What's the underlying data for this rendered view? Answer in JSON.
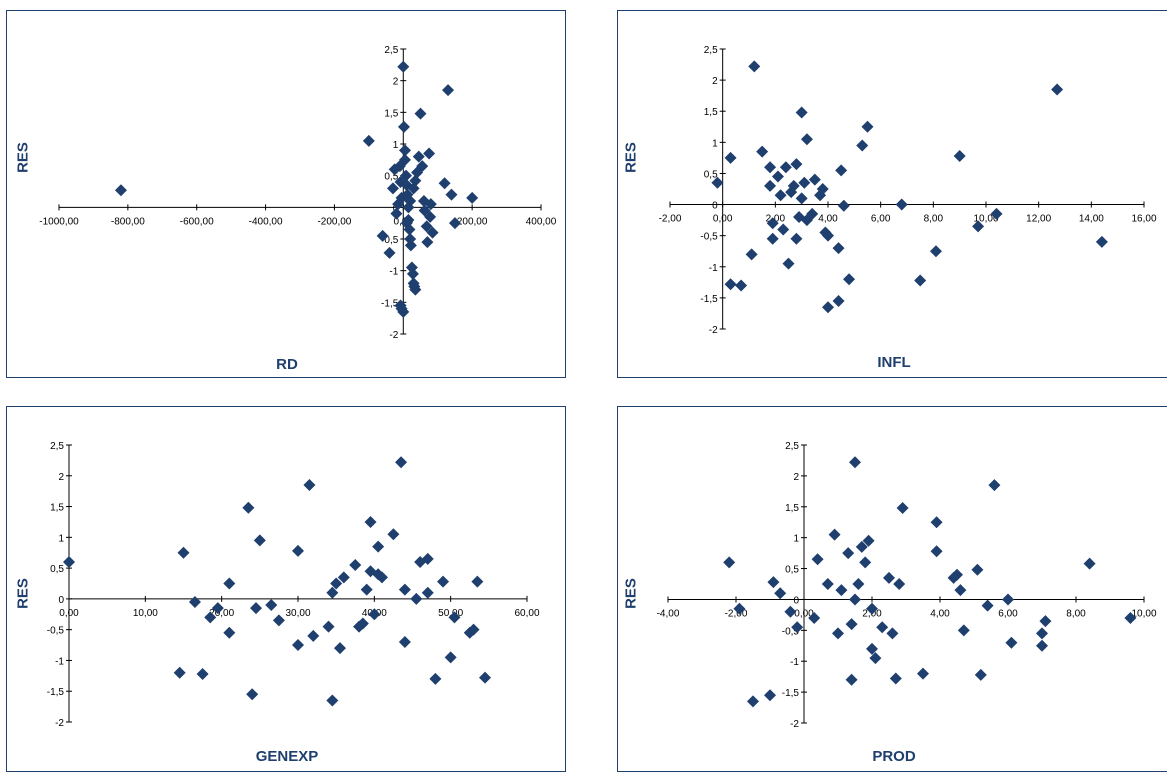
{
  "chart_data": [
    {
      "type": "scatter",
      "xlabel": "RD",
      "ylabel": "RES",
      "xlim": [
        -1000,
        400
      ],
      "ylim": [
        -2,
        2.5
      ],
      "xticks": [
        "-1000,00",
        "-800,00",
        "-600,00",
        "-400,00",
        "-200,00",
        "0,00",
        "200,00",
        "400,00"
      ],
      "yticks": [
        "-2",
        "-1,5",
        "-1",
        "-0,5",
        "0",
        "0,5",
        "1",
        "1,5",
        "2",
        "2,5"
      ],
      "marker_color": "#1f3f6e",
      "points": [
        [
          -820,
          0.27
        ],
        [
          -100,
          1.05
        ],
        [
          -60,
          -0.45
        ],
        [
          -40,
          -0.72
        ],
        [
          -30,
          0.3
        ],
        [
          -25,
          0.6
        ],
        [
          -20,
          -0.1
        ],
        [
          -15,
          0.05
        ],
        [
          -10,
          0.65
        ],
        [
          -8,
          0.4
        ],
        [
          -5,
          0.15
        ],
        [
          0,
          2.22
        ],
        [
          2,
          1.27
        ],
        [
          5,
          0.75
        ],
        [
          5,
          0.9
        ],
        [
          8,
          0.5
        ],
        [
          10,
          0.35
        ],
        [
          12,
          0.2
        ],
        [
          15,
          0.0
        ],
        [
          15,
          -0.2
        ],
        [
          18,
          -0.35
        ],
        [
          20,
          -0.5
        ],
        [
          22,
          -0.6
        ],
        [
          25,
          -0.95
        ],
        [
          28,
          -1.05
        ],
        [
          30,
          -1.2
        ],
        [
          32,
          -1.25
        ],
        [
          35,
          -1.3
        ],
        [
          -8,
          -1.55
        ],
        [
          -5,
          -1.6
        ],
        [
          0,
          -1.65
        ],
        [
          10,
          -0.25
        ],
        [
          20,
          0.1
        ],
        [
          30,
          0.3
        ],
        [
          35,
          0.42
        ],
        [
          40,
          0.55
        ],
        [
          45,
          0.8
        ],
        [
          50,
          1.48
        ],
        [
          55,
          0.65
        ],
        [
          60,
          0.1
        ],
        [
          62,
          -0.05
        ],
        [
          68,
          -0.3
        ],
        [
          70,
          -0.55
        ],
        [
          75,
          0.85
        ],
        [
          78,
          -0.15
        ],
        [
          80,
          0.05
        ],
        [
          120,
          0.38
        ],
        [
          130,
          1.85
        ],
        [
          140,
          0.2
        ],
        [
          150,
          -0.25
        ],
        [
          85,
          -0.4
        ],
        [
          200,
          0.15
        ]
      ]
    },
    {
      "type": "scatter",
      "xlabel": "INFL",
      "ylabel": "RES",
      "xlim": [
        -2,
        16
      ],
      "ylim": [
        -2,
        2.5
      ],
      "xticks": [
        "-2,00",
        "0,00",
        "2,00",
        "4,00",
        "6,00",
        "8,00",
        "10,00",
        "12,00",
        "14,00",
        "16,00"
      ],
      "yticks": [
        "-2",
        "-1,5",
        "-1",
        "-0,5",
        "0",
        "0,5",
        "1",
        "1,5",
        "2",
        "2,5"
      ],
      "marker_color": "#1f3f6e",
      "points": [
        [
          -0.2,
          0.35
        ],
        [
          0.3,
          0.75
        ],
        [
          0.3,
          -1.28
        ],
        [
          0.7,
          -1.3
        ],
        [
          1.1,
          -0.8
        ],
        [
          1.2,
          2.22
        ],
        [
          1.5,
          0.85
        ],
        [
          1.8,
          0.6
        ],
        [
          1.8,
          0.3
        ],
        [
          1.9,
          -0.3
        ],
        [
          1.9,
          -0.55
        ],
        [
          2.1,
          0.45
        ],
        [
          2.2,
          0.15
        ],
        [
          2.3,
          -0.4
        ],
        [
          2.4,
          0.6
        ],
        [
          2.5,
          -0.95
        ],
        [
          2.6,
          0.2
        ],
        [
          2.7,
          0.3
        ],
        [
          2.8,
          0.65
        ],
        [
          2.8,
          -0.55
        ],
        [
          2.9,
          -0.2
        ],
        [
          3.0,
          0.1
        ],
        [
          3.0,
          1.48
        ],
        [
          3.1,
          0.35
        ],
        [
          3.2,
          1.05
        ],
        [
          3.2,
          -0.25
        ],
        [
          3.4,
          -0.15
        ],
        [
          3.5,
          0.4
        ],
        [
          3.7,
          0.15
        ],
        [
          3.8,
          0.25
        ],
        [
          3.9,
          -0.45
        ],
        [
          4.0,
          -0.5
        ],
        [
          4.0,
          -1.65
        ],
        [
          4.4,
          -1.55
        ],
        [
          4.4,
          -0.7
        ],
        [
          4.5,
          0.55
        ],
        [
          4.6,
          -0.02
        ],
        [
          4.8,
          -1.2
        ],
        [
          5.3,
          0.95
        ],
        [
          5.5,
          1.25
        ],
        [
          6.8,
          0.0
        ],
        [
          7.5,
          -1.22
        ],
        [
          8.1,
          -0.75
        ],
        [
          9.0,
          0.78
        ],
        [
          9.7,
          -0.35
        ],
        [
          10.4,
          -0.15
        ],
        [
          12.7,
          1.85
        ],
        [
          14.4,
          -0.6
        ]
      ]
    },
    {
      "type": "scatter",
      "xlabel": "GENEXP",
      "ylabel": "RES",
      "xlim": [
        0,
        60
      ],
      "ylim": [
        -2,
        2.5
      ],
      "xticks": [
        "0,00",
        "10,00",
        "20,00",
        "30,00",
        "40,00",
        "50,00",
        "60,00"
      ],
      "yticks": [
        "-2",
        "-1,5",
        "-1",
        "-0,5",
        "0",
        "0,5",
        "1",
        "1,5",
        "2",
        "2,5"
      ],
      "marker_color": "#1f3f6e",
      "points": [
        [
          0,
          0.6
        ],
        [
          14.5,
          -1.2
        ],
        [
          15,
          0.75
        ],
        [
          16.5,
          -0.05
        ],
        [
          17.5,
          -1.22
        ],
        [
          18.5,
          -0.3
        ],
        [
          19.5,
          -0.15
        ],
        [
          21,
          0.25
        ],
        [
          21,
          -0.55
        ],
        [
          23.5,
          1.48
        ],
        [
          24,
          -1.55
        ],
        [
          24.5,
          -0.15
        ],
        [
          25,
          0.95
        ],
        [
          26.5,
          -0.1
        ],
        [
          27.5,
          -0.35
        ],
        [
          30,
          -0.75
        ],
        [
          30,
          0.78
        ],
        [
          31.5,
          1.85
        ],
        [
          32,
          -0.6
        ],
        [
          34,
          -0.45
        ],
        [
          34.5,
          -1.65
        ],
        [
          34.5,
          0.1
        ],
        [
          35,
          0.25
        ],
        [
          35.5,
          -0.8
        ],
        [
          36,
          0.35
        ],
        [
          37.5,
          0.55
        ],
        [
          38,
          -0.45
        ],
        [
          38.5,
          -0.4
        ],
        [
          39,
          0.15
        ],
        [
          39.5,
          1.25
        ],
        [
          39.5,
          0.45
        ],
        [
          40,
          -0.25
        ],
        [
          40.5,
          0.4
        ],
        [
          40.5,
          0.85
        ],
        [
          41,
          0.35
        ],
        [
          42.5,
          1.05
        ],
        [
          43.5,
          2.22
        ],
        [
          44,
          0.15
        ],
        [
          44,
          -0.7
        ],
        [
          45.5,
          0.0
        ],
        [
          46,
          0.6
        ],
        [
          47,
          0.65
        ],
        [
          47,
          0.1
        ],
        [
          48,
          -1.3
        ],
        [
          49,
          0.28
        ],
        [
          50,
          -0.95
        ],
        [
          50.5,
          -0.3
        ],
        [
          52.5,
          -0.55
        ],
        [
          53,
          -0.5
        ],
        [
          53.5,
          0.28
        ],
        [
          54.5,
          -1.28
        ]
      ]
    },
    {
      "type": "scatter",
      "xlabel": "PROD",
      "ylabel": "RES",
      "xlim": [
        -4,
        10
      ],
      "ylim": [
        -2,
        2.5
      ],
      "xticks": [
        "-4,00",
        "-2,00",
        "0,00",
        "2,00",
        "4,00",
        "6,00",
        "8,00",
        "10,00"
      ],
      "yticks": [
        "-2",
        "-1,5",
        "-1",
        "-0,5",
        "0",
        "0,5",
        "1",
        "1,5",
        "2",
        "2,5"
      ],
      "marker_color": "#1f3f6e",
      "points": [
        [
          -2.2,
          0.6
        ],
        [
          -1.9,
          -0.15
        ],
        [
          -1.5,
          -1.65
        ],
        [
          -1.0,
          -1.55
        ],
        [
          -0.9,
          0.28
        ],
        [
          -0.7,
          0.1
        ],
        [
          -0.4,
          -0.2
        ],
        [
          -0.2,
          -0.45
        ],
        [
          0.3,
          -0.3
        ],
        [
          0.4,
          0.65
        ],
        [
          0.7,
          0.25
        ],
        [
          0.9,
          1.05
        ],
        [
          1.0,
          -0.55
        ],
        [
          1.1,
          0.15
        ],
        [
          1.3,
          0.75
        ],
        [
          1.4,
          -0.4
        ],
        [
          1.4,
          -1.3
        ],
        [
          1.5,
          2.22
        ],
        [
          1.5,
          0.0
        ],
        [
          1.6,
          0.25
        ],
        [
          1.7,
          0.85
        ],
        [
          1.8,
          0.6
        ],
        [
          1.9,
          0.95
        ],
        [
          2.0,
          -0.15
        ],
        [
          2.0,
          -0.8
        ],
        [
          2.1,
          -0.95
        ],
        [
          2.3,
          -0.45
        ],
        [
          2.5,
          0.35
        ],
        [
          2.6,
          -0.55
        ],
        [
          2.7,
          -1.28
        ],
        [
          2.8,
          0.25
        ],
        [
          2.9,
          1.48
        ],
        [
          3.5,
          -1.2
        ],
        [
          3.9,
          1.25
        ],
        [
          3.9,
          0.78
        ],
        [
          4.4,
          0.35
        ],
        [
          4.5,
          0.4
        ],
        [
          4.6,
          0.15
        ],
        [
          4.7,
          -0.5
        ],
        [
          5.1,
          0.48
        ],
        [
          5.2,
          -1.22
        ],
        [
          5.4,
          -0.1
        ],
        [
          5.6,
          1.85
        ],
        [
          6.0,
          0.0
        ],
        [
          6.1,
          -0.7
        ],
        [
          7.0,
          -0.75
        ],
        [
          7.0,
          -0.55
        ],
        [
          7.1,
          -0.35
        ],
        [
          8.4,
          0.58
        ],
        [
          9.6,
          -0.3
        ]
      ]
    }
  ]
}
